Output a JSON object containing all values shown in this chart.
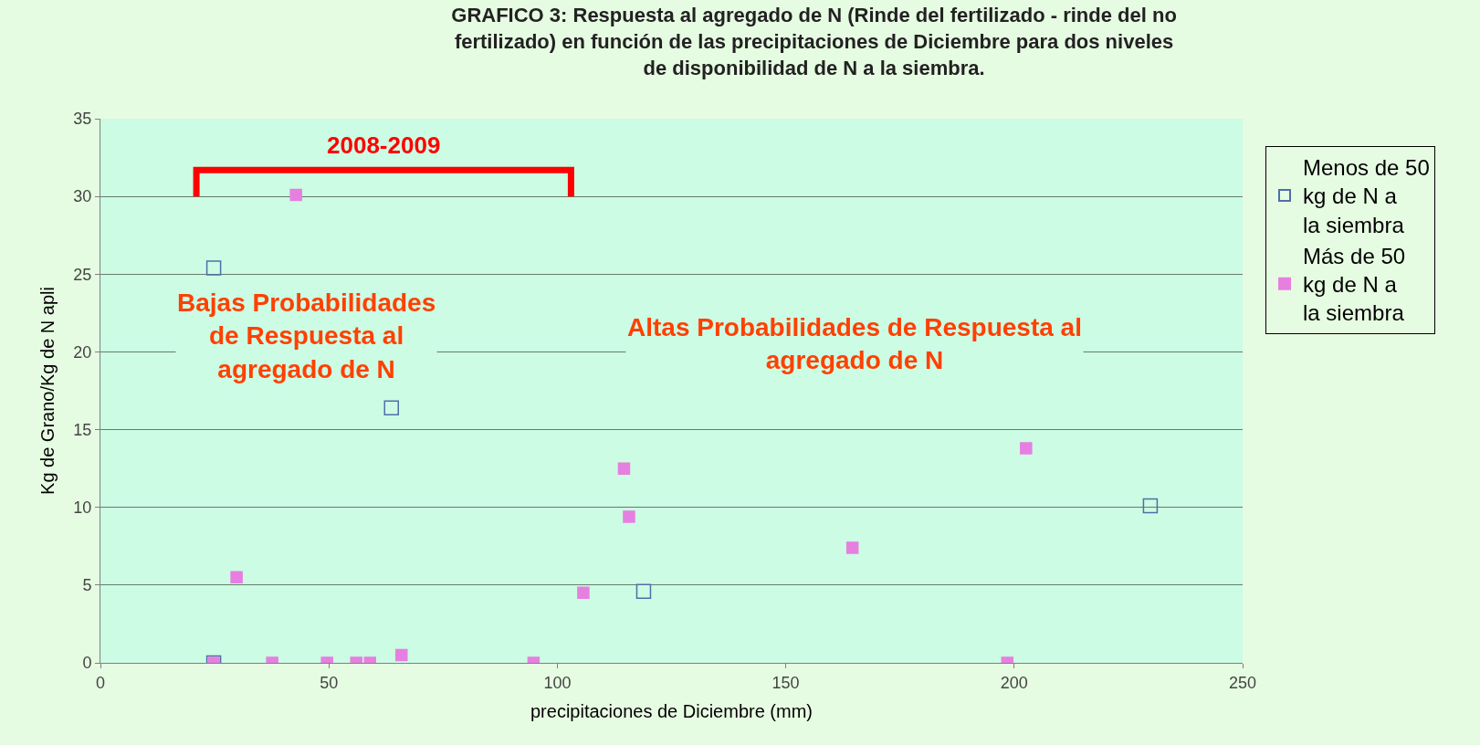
{
  "chart_data": {
    "type": "scatter",
    "title": "GRAFICO 3: Respuesta al agregado de N (Rinde del fertilizado - rinde del no fertilizado) en función de las precipitaciones de Diciembre para dos niveles de disponibilidad de N a la siembra.",
    "xlabel": "precipitaciones de Diciembre (mm)",
    "ylabel": "Kg de Grano/Kg de N apli",
    "series": [
      {
        "name": "Menos de 50 kg de N a la siembra",
        "color": "#4f6fa8",
        "marker": "square-open",
        "x": [
          24.8,
          24.8,
          63.7,
          118.9,
          229.8
        ],
        "values": [
          0,
          25.4,
          16.4,
          4.6,
          10.1
        ]
      },
      {
        "name": "Más de 50 kg de N a la siembra",
        "color": "#e67fe0",
        "marker": "square",
        "x": [
          24.8,
          29.8,
          42.8,
          37.6,
          49.6,
          56,
          59,
          65.9,
          94.8,
          105.7,
          114.6,
          115.7,
          164.6,
          202.6,
          198.5
        ],
        "values": [
          0,
          5.5,
          30.1,
          0,
          0,
          0,
          0,
          0.5,
          0,
          4.5,
          12.5,
          9.4,
          7.4,
          13.8,
          0
        ]
      },
      {
        "type": "line",
        "color": "#ff0000",
        "marker": "none",
        "x": [
          21,
          21,
          103,
          103
        ],
        "values": [
          30,
          31.7,
          31.7,
          30
        ]
      }
    ],
    "annotations": [
      "2008-2009",
      "Bajas Probabilidades\nde Respuesta al\nagregado de N",
      "Altas Probabilidades de Respuesta al\nagregado de N"
    ],
    "xlim": [
      0,
      250
    ],
    "xticks": [
      0,
      50,
      100,
      150,
      200,
      250
    ],
    "ylim": [
      0,
      35
    ],
    "yticks": [
      0,
      5,
      10,
      15,
      20,
      25,
      30,
      35
    ],
    "grid": "y",
    "legend": "right"
  }
}
